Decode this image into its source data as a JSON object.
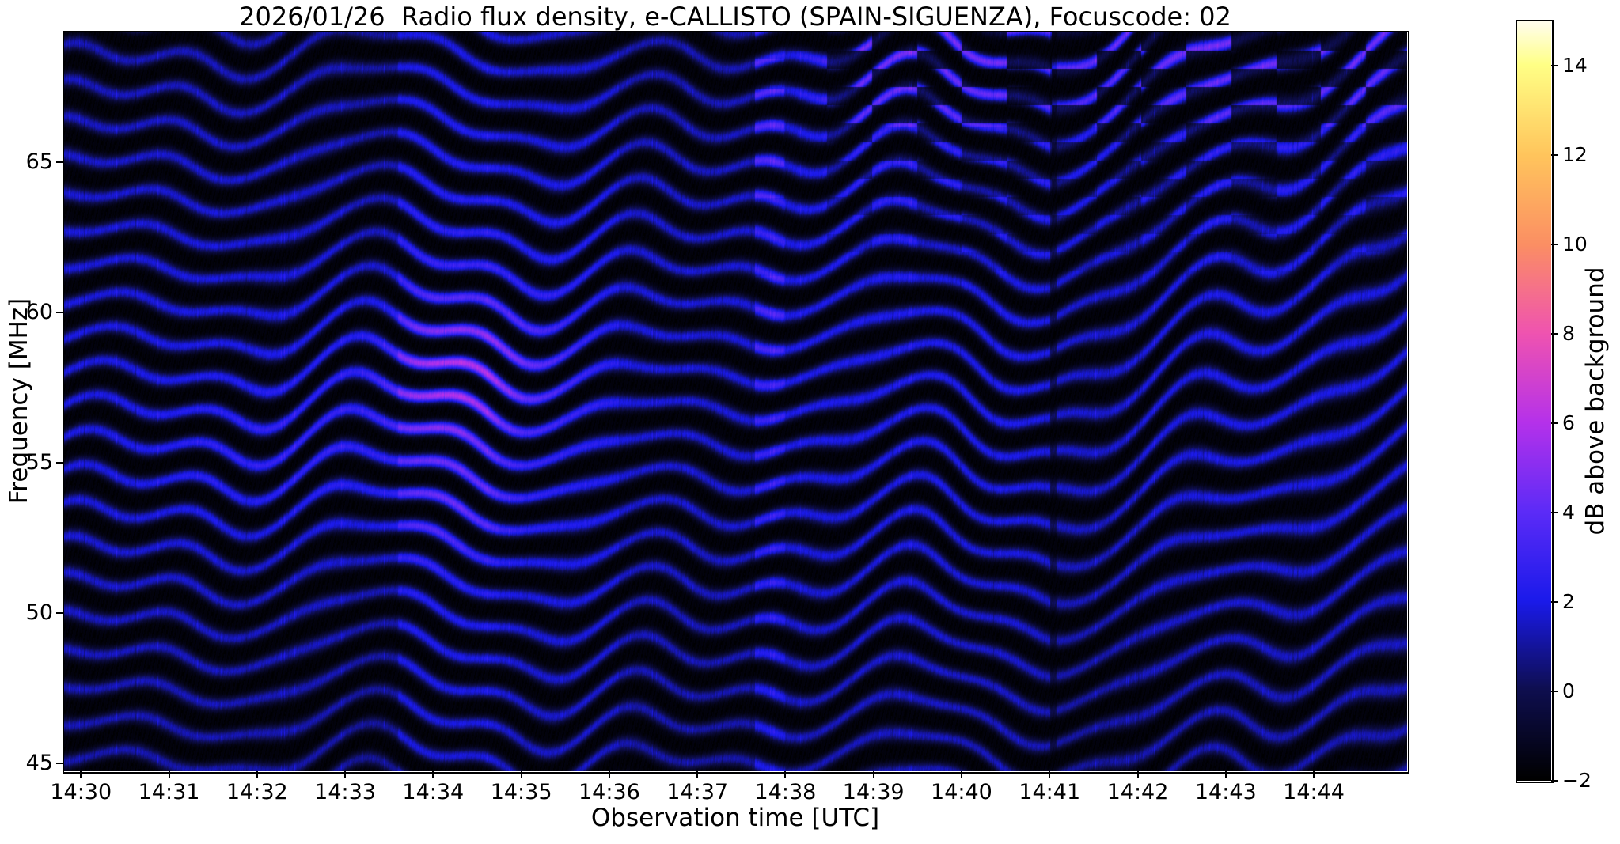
{
  "figure": {
    "background": "#ffffff",
    "text_color": "#000000"
  },
  "chart_data": {
    "type": "heatmap",
    "subtype": "radio-spectrogram",
    "title": "2026/01/26  Radio flux density, e-CALLISTO (SPAIN-SIGUENZA), Focuscode: 02",
    "date": "2026/01/26",
    "network": "e-CALLISTO",
    "station": "SPAIN-SIGUENZA",
    "focuscode": "02",
    "xlabel": "Observation time [UTC]",
    "ylabel": "Frequency [MHz]",
    "x_ticks": [
      "14:30",
      "14:31",
      "14:32",
      "14:33",
      "14:34",
      "14:35",
      "14:36",
      "14:37",
      "14:38",
      "14:39",
      "14:40",
      "14:41",
      "14:42",
      "14:43",
      "14:44"
    ],
    "x_range_minutes_after_1430": [
      -0.2,
      15.06
    ],
    "y_ticks_mhz": [
      65,
      60,
      55,
      50,
      45
    ],
    "y_range_mhz": [
      44.74,
      69.34
    ],
    "grid": false,
    "colorbar": {
      "label": "dB above background",
      "range": [
        -2,
        15
      ],
      "ticks": [
        {
          "v": 14,
          "label": "14"
        },
        {
          "v": 12,
          "label": "12"
        },
        {
          "v": 10,
          "label": "10"
        },
        {
          "v": 8,
          "label": "8"
        },
        {
          "v": 6,
          "label": "6"
        },
        {
          "v": 4,
          "label": "4"
        },
        {
          "v": 2,
          "label": "2"
        },
        {
          "v": 0,
          "label": "0"
        },
        {
          "v": -2,
          "label": "−2"
        }
      ],
      "colormap": "gnuplot2-like",
      "stops": [
        {
          "v": -2,
          "c": "#000000"
        },
        {
          "v": 0,
          "c": "#0e0e4e"
        },
        {
          "v": 2,
          "c": "#1a1aea"
        },
        {
          "v": 4,
          "c": "#5c2bf7"
        },
        {
          "v": 6,
          "c": "#b531ea"
        },
        {
          "v": 8,
          "c": "#ef53b0"
        },
        {
          "v": 10,
          "c": "#fb8f63"
        },
        {
          "v": 12,
          "c": "#ffc55c"
        },
        {
          "v": 14,
          "c": "#ffff85"
        },
        {
          "v": 15,
          "c": "#fffdf0"
        }
      ]
    },
    "intensity_summary": {
      "background_db_range": [
        -2,
        0
      ],
      "interference_band_db_range": [
        2,
        4
      ],
      "peak_patch_db": 8
    },
    "description": "Quiet spectrogram dominated by horizontal wavy RFI interference bands (~1.17 MHz apart) undulating with a ~3 minute period; a brighter calibration column 14:33.6-14:34.8 carries magenta patches near 52-58 MHz; a bright strip with magenta blocks appears at 14:37.7; a blocky bright/dark moire pattern covers the upper-right above ~60 MHz after 14:38; fringes tilt into diagonals toward 14:42-14:45.",
    "render_hints": {
      "band_spacing_mhz": 1.17,
      "band_anchor_mhz": 68.6,
      "band_peak_db": 3.35,
      "background_db": -1.75,
      "waves": [
        {
          "amp_mhz": 0.55,
          "period_min": 3.05,
          "phase_rad": 0.8
        },
        {
          "amp_mhz": 0.34,
          "period_min": 5.75,
          "phase_rad": 4.3
        },
        {
          "amp_mhz": 0.16,
          "period_min": 1.62,
          "phase_rad": 2.6
        }
      ],
      "freq_coupled_wave": {
        "amp_mhz": 0.24,
        "period_min": 1.37,
        "phase_rad": 2.0,
        "phase_per_mhz_rad": 0.4
      },
      "fan_start_min": 11.0,
      "segments": [
        {
          "start_min": -0.2,
          "end_min": 3.0,
          "gain": 1.0
        },
        {
          "start_min": 3.0,
          "end_min": 3.6,
          "gain": 0.9
        },
        {
          "start_min": 3.6,
          "end_min": 4.75,
          "gain": 1.22
        },
        {
          "start_min": 4.75,
          "end_min": 6.1,
          "gain": 1.1
        },
        {
          "start_min": 6.1,
          "end_min": 7.65,
          "gain": 0.97
        },
        {
          "start_min": 7.65,
          "end_min": 7.98,
          "gain": 1.32
        },
        {
          "start_min": 7.98,
          "end_min": 11.0,
          "gain": 1.05
        },
        {
          "start_min": 11.0,
          "end_min": 11.07,
          "gain": 0.55
        },
        {
          "start_min": 11.07,
          "end_min": 12.05,
          "gain": 0.95
        },
        {
          "start_min": 12.05,
          "end_min": 15.1,
          "gain": 1.02
        }
      ],
      "hot_patches": [
        {
          "t_min": 4.33,
          "f_mhz": 57.9,
          "sigma_min": 0.75,
          "sigma_mhz": 1.8,
          "amp_db": 3.5
        },
        {
          "t_min": 4.25,
          "f_mhz": 53.5,
          "sigma_min": 0.6,
          "sigma_mhz": 1.2,
          "amp_db": 1.6
        },
        {
          "t_min": 2.2,
          "f_mhz": 55.4,
          "sigma_min": 1.0,
          "sigma_mhz": 1.6,
          "amp_db": 1.0
        }
      ],
      "bright_strip": {
        "start_min": 7.65,
        "end_min": 7.98,
        "amp_db": 1.6
      },
      "checker_region": {
        "start_min": 7.9,
        "min_f_mhz": 60.4,
        "cell_min": 0.51,
        "cell_mhz": 0.61
      }
    }
  }
}
